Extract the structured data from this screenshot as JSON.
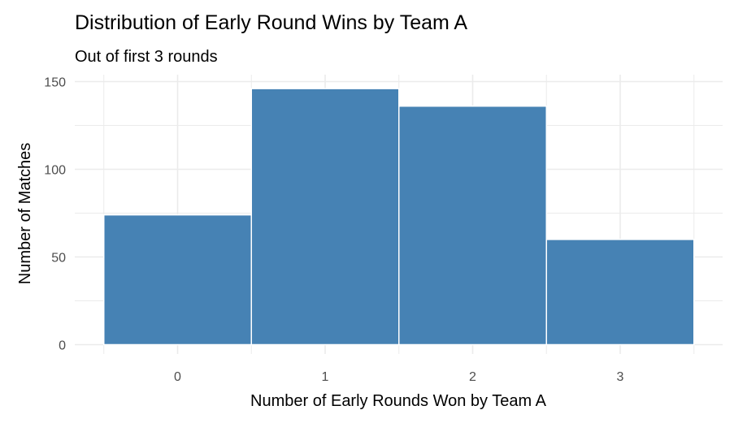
{
  "chart_data": {
    "type": "bar",
    "title": "Distribution of Early Round Wins by Team A",
    "subtitle": "Out of first 3 rounds",
    "xlabel": "Number of Early Rounds Won by Team A",
    "ylabel": "Number of Matches",
    "categories": [
      "0",
      "1",
      "2",
      "3"
    ],
    "values": [
      74,
      146,
      136,
      60
    ],
    "ylim": [
      0,
      150
    ],
    "yticks": [
      0,
      50,
      100,
      150
    ],
    "grid": true,
    "legend": "none",
    "colors": {
      "bar": "#4682B4",
      "bar_outline": "#ffffff",
      "grid": "#ebebeb",
      "text": "#000000",
      "tick_text": "#4d4d4d"
    }
  }
}
